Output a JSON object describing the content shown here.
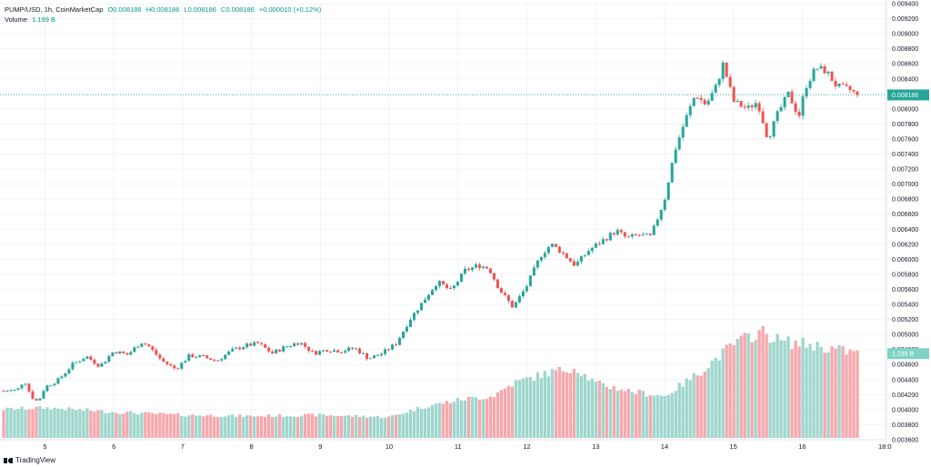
{
  "legend": {
    "symbol": "PUMP/USD, 1h, CoinMarketCap",
    "open": "O0.008186",
    "high": "H0.008186",
    "low": "L0.008186",
    "close": "C0.008186",
    "change": "+0.000010 (+0.12%)",
    "volume_label": "Volume",
    "volume_value": "1.199 B"
  },
  "footer": {
    "brand": "TradingView"
  },
  "colors": {
    "up": "#26a69a",
    "down": "#ef5350",
    "vol_up": "#9fd6cd",
    "vol_down": "#f6a8ad",
    "axis_text": "#131722",
    "grid": "#f0f3fa"
  },
  "chart_data": {
    "type": "candlestick",
    "interval": "1h",
    "y_axis": {
      "min": 0.0036,
      "max": 0.0094,
      "ticks": [
        "0.009400",
        "0.009200",
        "0.009000",
        "0.008800",
        "0.008600",
        "0.008400",
        "0.008200",
        "0.008000",
        "0.007800",
        "0.007600",
        "0.007400",
        "0.007200",
        "0.007000",
        "0.006800",
        "0.006600",
        "0.006400",
        "0.006200",
        "0.006000",
        "0.005800",
        "0.005600",
        "0.005400",
        "0.005200",
        "0.005000",
        "0.004800",
        "0.004600",
        "0.004400",
        "0.004200",
        "0.004000",
        "0.003800",
        "0.003600"
      ]
    },
    "x_axis": {
      "ticks": [
        "5",
        "6",
        "7",
        "8",
        "9",
        "10",
        "11",
        "12",
        "13",
        "14",
        "15",
        "16",
        "18:0"
      ],
      "tick_times": [
        4.5,
        5.5,
        6.5,
        7.5,
        8.5,
        9.5,
        10.5,
        11.5,
        12.5,
        13.5,
        14.5,
        15.5,
        16.7
      ],
      "start": 3.9,
      "end": 16.3
    },
    "last_price_label": "0.008186",
    "last_price": 0.008186,
    "last_volume_label": "1.199 B",
    "close_path": [
      [
        3.9,
        0.00425
      ],
      [
        4.1,
        0.00426
      ],
      [
        4.2,
        0.0044
      ],
      [
        4.3,
        0.00418
      ],
      [
        4.4,
        0.0041
      ],
      [
        4.5,
        0.0043
      ],
      [
        4.7,
        0.0044
      ],
      [
        4.9,
        0.0046
      ],
      [
        5.1,
        0.00471
      ],
      [
        5.3,
        0.00458
      ],
      [
        5.5,
        0.00478
      ],
      [
        5.7,
        0.00473
      ],
      [
        5.9,
        0.0049
      ],
      [
        6.0,
        0.00485
      ],
      [
        6.2,
        0.00465
      ],
      [
        6.4,
        0.00454
      ],
      [
        6.6,
        0.00472
      ],
      [
        6.8,
        0.0047
      ],
      [
        7.0,
        0.00465
      ],
      [
        7.2,
        0.00478
      ],
      [
        7.4,
        0.00485
      ],
      [
        7.6,
        0.00488
      ],
      [
        7.8,
        0.00475
      ],
      [
        8.0,
        0.00484
      ],
      [
        8.2,
        0.0049
      ],
      [
        8.4,
        0.00475
      ],
      [
        8.6,
        0.0048
      ],
      [
        8.8,
        0.00478
      ],
      [
        9.0,
        0.00482
      ],
      [
        9.2,
        0.00468
      ],
      [
        9.4,
        0.00475
      ],
      [
        9.6,
        0.00488
      ],
      [
        9.8,
        0.0052
      ],
      [
        10.0,
        0.00545
      ],
      [
        10.2,
        0.0057
      ],
      [
        10.4,
        0.00558
      ],
      [
        10.6,
        0.00585
      ],
      [
        10.8,
        0.00592
      ],
      [
        10.95,
        0.00588
      ],
      [
        11.1,
        0.0056
      ],
      [
        11.3,
        0.00536
      ],
      [
        11.5,
        0.00565
      ],
      [
        11.7,
        0.00605
      ],
      [
        11.85,
        0.0062
      ],
      [
        12.0,
        0.0061
      ],
      [
        12.2,
        0.00592
      ],
      [
        12.4,
        0.00612
      ],
      [
        12.6,
        0.00625
      ],
      [
        12.8,
        0.00638
      ],
      [
        12.95,
        0.00628
      ],
      [
        13.1,
        0.00632
      ],
      [
        13.3,
        0.0063
      ],
      [
        13.5,
        0.0068
      ],
      [
        13.65,
        0.00745
      ],
      [
        13.8,
        0.00785
      ],
      [
        13.95,
        0.0082
      ],
      [
        14.1,
        0.00805
      ],
      [
        14.25,
        0.0083
      ],
      [
        14.35,
        0.0086
      ],
      [
        14.5,
        0.0081
      ],
      [
        14.7,
        0.008
      ],
      [
        14.85,
        0.0081
      ],
      [
        15.0,
        0.0076
      ],
      [
        15.15,
        0.00795
      ],
      [
        15.3,
        0.0082
      ],
      [
        15.45,
        0.0079
      ],
      [
        15.55,
        0.0083
      ],
      [
        15.7,
        0.00855
      ],
      [
        15.85,
        0.0085
      ],
      [
        16.0,
        0.0083
      ],
      [
        16.2,
        0.00825
      ],
      [
        16.3,
        0.008186
      ]
    ],
    "volume_profile": [
      [
        3.9,
        0.55
      ],
      [
        4.5,
        0.58
      ],
      [
        5.5,
        0.5
      ],
      [
        6.5,
        0.44
      ],
      [
        7.5,
        0.42
      ],
      [
        8.5,
        0.44
      ],
      [
        9.5,
        0.4
      ],
      [
        10.0,
        0.6
      ],
      [
        10.6,
        0.75
      ],
      [
        11.0,
        0.8
      ],
      [
        11.3,
        1.05
      ],
      [
        11.8,
        1.25
      ],
      [
        12.2,
        1.35
      ],
      [
        12.5,
        1.05
      ],
      [
        13.0,
        0.9
      ],
      [
        13.5,
        0.8
      ],
      [
        14.0,
        1.25
      ],
      [
        14.5,
        1.8
      ],
      [
        14.9,
        2.05
      ],
      [
        15.2,
        1.85
      ],
      [
        15.6,
        1.8
      ],
      [
        16.0,
        1.7
      ],
      [
        16.3,
        1.62
      ]
    ],
    "volume_max": 2.2
  }
}
